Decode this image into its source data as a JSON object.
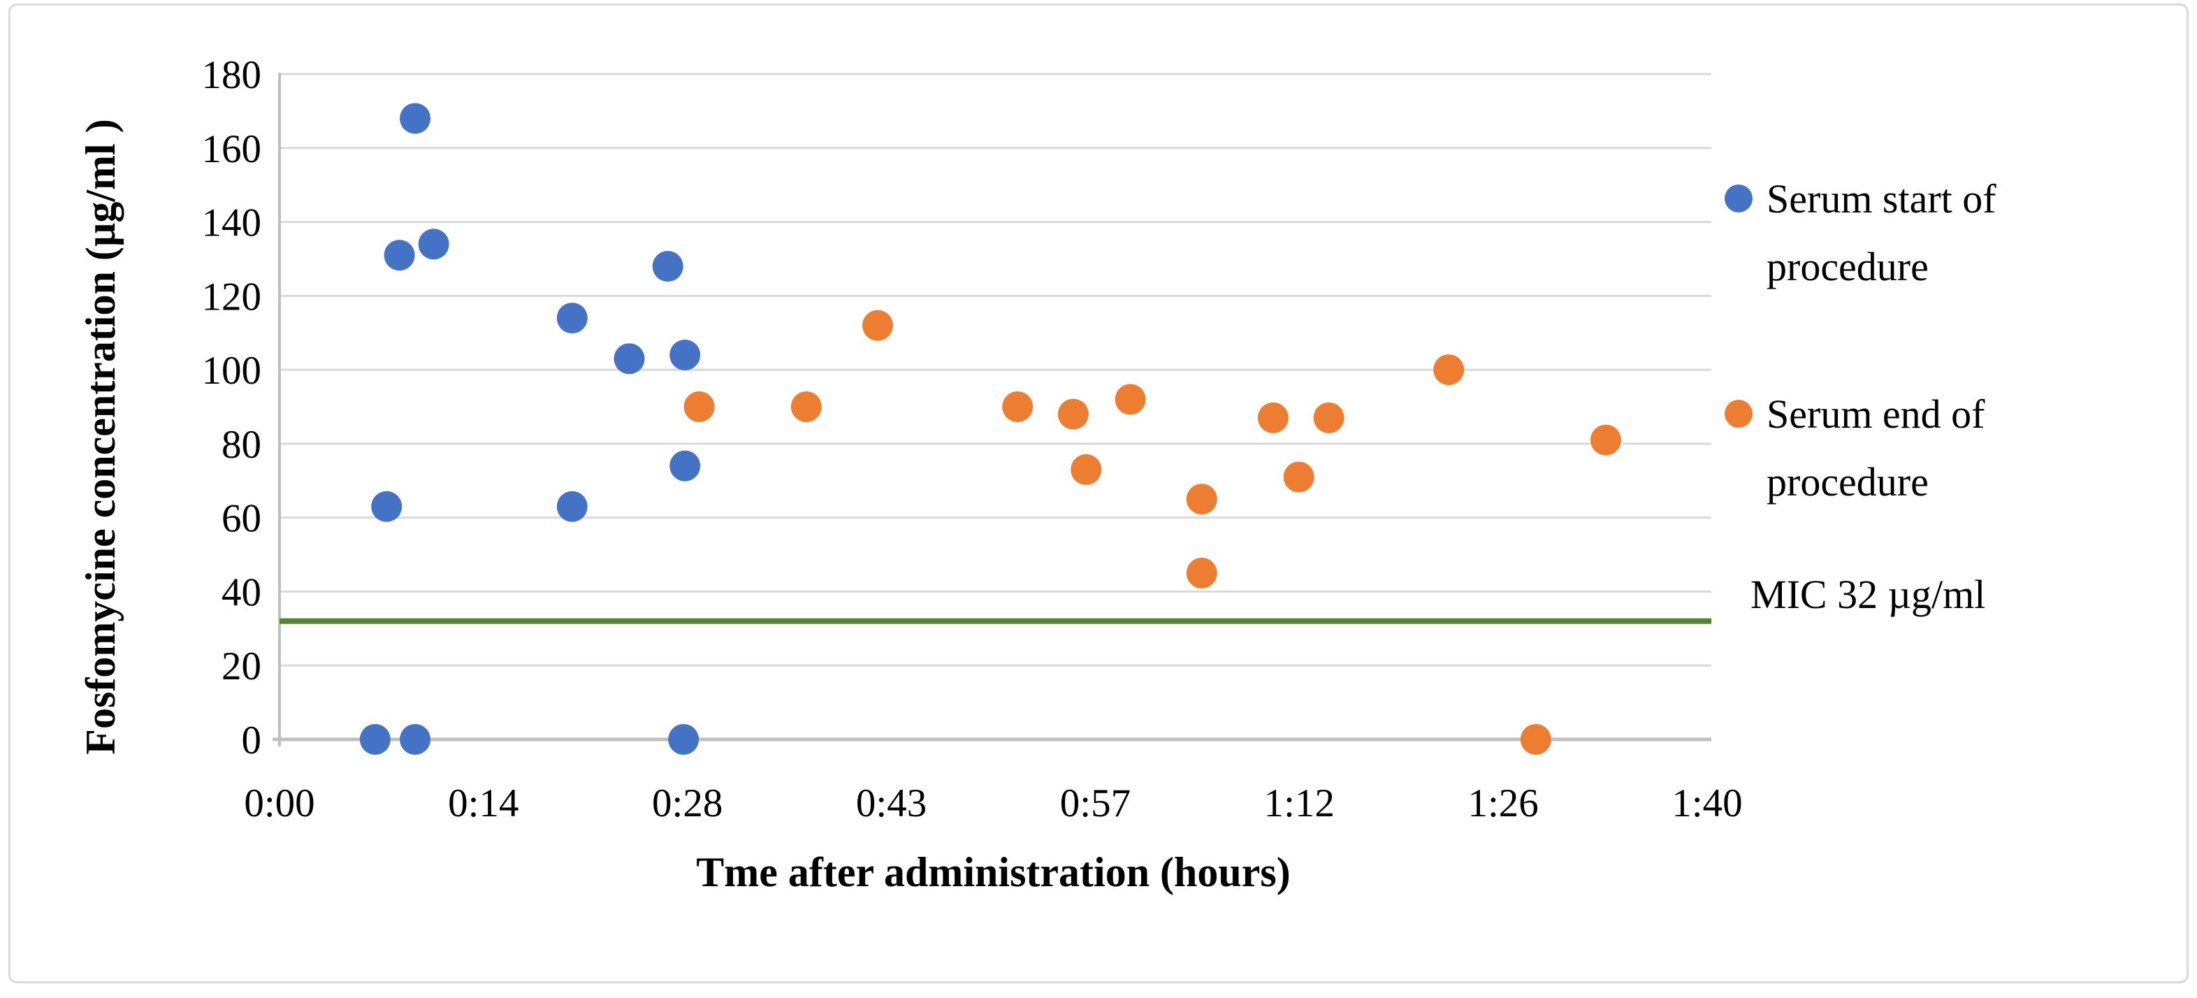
{
  "figure": {
    "background": "#ffffff",
    "border_color": "#d9d9d9"
  },
  "colors": {
    "grid": "#d9d9d9",
    "axis": "#bfbfbf",
    "text": "#000000"
  },
  "legend": [
    {
      "id": "serum-start",
      "name": "Serum start of procedure",
      "lines": [
        "Serum start of",
        "procedure"
      ],
      "color": "#4472C4"
    },
    {
      "id": "serum-end",
      "name": "Serum end of procedure",
      "lines": [
        "Serum end of",
        "procedure"
      ],
      "color": "#ED7D31"
    }
  ],
  "chart_data": {
    "type": "scatter",
    "title": "",
    "xlabel": "Tme after administration (hours)",
    "ylabel": "Fosfomycine concentration (µg/ml )",
    "grid": "horizontal",
    "legend_position": "right",
    "x_axis": {
      "unit": "h:mm",
      "tick_labels": [
        "0:00",
        "0:14",
        "0:28",
        "0:43",
        "0:57",
        "1:12",
        "1:26",
        "1:40"
      ],
      "range_minutes": [
        0,
        100
      ]
    },
    "y_axis": {
      "ticks": [
        0,
        20,
        40,
        60,
        80,
        100,
        120,
        140,
        160,
        180
      ],
      "range": [
        0,
        180
      ]
    },
    "series": [
      {
        "id": "serum-start",
        "name": "Serum start of procedure",
        "color": "#4472C4",
        "points_format": [
          "minutes_after_administration",
          "concentration_ug_ml",
          "time_label"
        ],
        "points": [
          [
            6.7,
            0,
            "0:07"
          ],
          [
            7.5,
            63,
            "0:08"
          ],
          [
            8.4,
            131,
            "0:08"
          ],
          [
            9.5,
            168,
            "0:10"
          ],
          [
            9.5,
            0,
            "0:10"
          ],
          [
            10.8,
            134,
            "0:11"
          ],
          [
            20.5,
            114,
            "0:21"
          ],
          [
            20.5,
            63,
            "0:21"
          ],
          [
            24.5,
            103,
            "0:25"
          ],
          [
            27.2,
            128,
            "0:27"
          ],
          [
            28.3,
            0,
            "0:28"
          ],
          [
            28.4,
            104,
            "0:28"
          ],
          [
            28.4,
            74,
            "0:28"
          ]
        ]
      },
      {
        "id": "serum-end",
        "name": "Serum end of procedure",
        "color": "#ED7D31",
        "points_format": [
          "minutes_after_administration",
          "concentration_ug_ml",
          "time_label"
        ],
        "points": [
          [
            29.4,
            90,
            "0:29"
          ],
          [
            36.9,
            90,
            "0:37"
          ],
          [
            41.9,
            112,
            "0:42"
          ],
          [
            51.7,
            90,
            "0:52"
          ],
          [
            55.6,
            88,
            "0:56"
          ],
          [
            56.5,
            73,
            "0:57"
          ],
          [
            59.6,
            92,
            "1:00"
          ],
          [
            64.6,
            65,
            "1:05"
          ],
          [
            64.6,
            45,
            "1:05"
          ],
          [
            69.6,
            87,
            "1:10"
          ],
          [
            71.4,
            71,
            "1:11"
          ],
          [
            73.5,
            87,
            "1:14"
          ],
          [
            81.9,
            100,
            "1:22"
          ],
          [
            88.0,
            0,
            "1:28"
          ],
          [
            92.9,
            81,
            "1:33"
          ]
        ]
      }
    ],
    "reference_line": {
      "label": "MIC 32 µg/ml",
      "value": 32,
      "color": "#548235"
    }
  }
}
